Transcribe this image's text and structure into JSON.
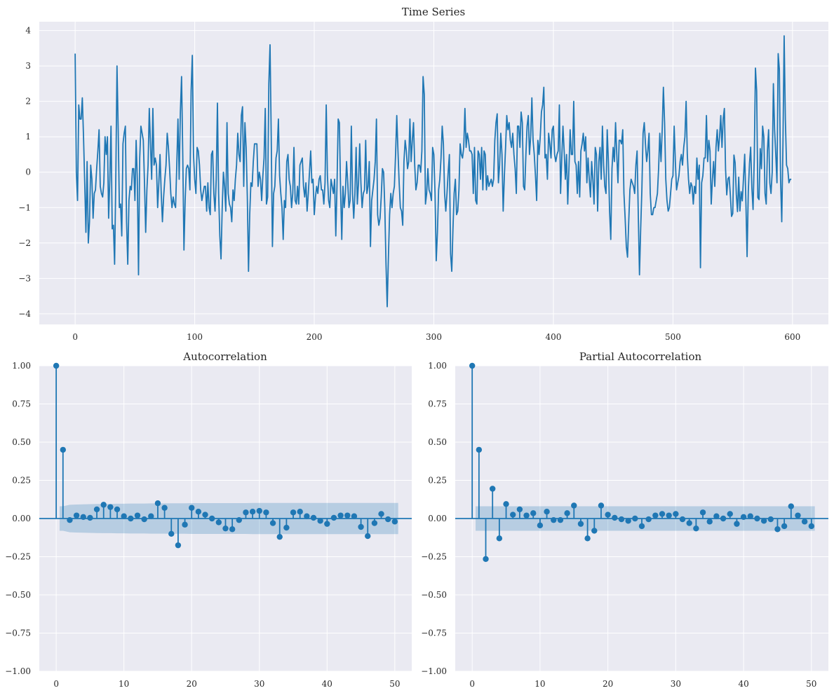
{
  "chart_data": [
    {
      "type": "line",
      "title": "Time Series",
      "xlabel": "",
      "ylabel": "",
      "xlim": [
        -30,
        630
      ],
      "ylim": [
        -4.3,
        4.25
      ],
      "xticks": [
        0,
        100,
        200,
        300,
        400,
        500,
        600
      ],
      "yticks": [
        4,
        3,
        2,
        1,
        0,
        -1,
        -2,
        -3,
        -4
      ],
      "grid": true,
      "color": "#1f77b4",
      "x_start": 0,
      "x_step": 1,
      "description_of_values": "approximate reconstruction of 600-point noisy series read from the plot",
      "values": [
        3.35,
        0.0,
        -0.8,
        1.9,
        1.5,
        1.5,
        2.1,
        1.0,
        -0.3,
        -1.7,
        0.3,
        -2.0,
        -1.4,
        0.2,
        -0.2,
        -1.3,
        -0.6,
        -0.5,
        0.1,
        0.6,
        1.2,
        -0.4,
        -0.6,
        -0.7,
        -0.3,
        1.0,
        0.5,
        1.0,
        -1.3,
        -0.2,
        1.3,
        -1.6,
        -1.5,
        -2.6,
        -0.2,
        3.0,
        1.2,
        -1.0,
        -0.9,
        -1.8,
        0.8,
        1.1,
        1.3,
        -1.4,
        -2.6,
        -0.8,
        -0.4,
        -0.5,
        0.1,
        0.1,
        -0.8,
        0.9,
        -0.2,
        -2.9,
        0.4,
        1.3,
        1.1,
        0.9,
        -0.3,
        -1.7,
        -0.5,
        0.2,
        1.8,
        0.8,
        -0.2,
        1.8,
        0.2,
        0.4,
        0.2,
        -1.0,
        -0.3,
        0.5,
        -0.6,
        -1.4,
        -0.7,
        -0.2,
        0.2,
        1.1,
        0.7,
        0.1,
        -0.6,
        -1.0,
        -0.7,
        -0.9,
        -1.0,
        0.2,
        1.5,
        -0.2,
        1.7,
        2.7,
        0.5,
        -2.2,
        -0.8,
        0.1,
        0.2,
        0.1,
        -0.5,
        2.3,
        3.3,
        0.5,
        -0.2,
        -0.6,
        0.7,
        0.6,
        0.2,
        -0.5,
        -0.8,
        -0.6,
        -0.4,
        -0.4,
        -1.1,
        -0.3,
        -1.0,
        -1.2,
        0.5,
        0.6,
        -0.6,
        -1.1,
        -0.2,
        1.95,
        -0.6,
        -1.8,
        -2.45,
        -1.0,
        0.0,
        -0.4,
        -1.1,
        1.4,
        -0.6,
        -0.9,
        -1.0,
        -1.4,
        -0.5,
        -0.8,
        -0.2,
        0.2,
        1.1,
        0.5,
        0.3,
        1.6,
        1.85,
        -0.4,
        1.4,
        0.7,
        -0.7,
        -2.8,
        -1.2,
        -0.3,
        -0.4,
        0.3,
        0.8,
        0.8,
        0.8,
        -0.4,
        0.0,
        -0.2,
        -0.8,
        -0.1,
        0.4,
        1.8,
        -0.9,
        -0.7,
        2.5,
        3.6,
        1.0,
        -2.1,
        -0.6,
        -0.4,
        0.4,
        0.6,
        1.5,
        -0.1,
        -0.6,
        -1.0,
        -1.9,
        -0.8,
        -1.0,
        0.3,
        0.5,
        -0.2,
        -0.4,
        -1.0,
        -0.6,
        0.7,
        -0.8,
        -0.9,
        -0.4,
        -0.9,
        0.2,
        0.3,
        0.4,
        -0.4,
        -0.7,
        -0.3,
        -1.1,
        -0.6,
        0.0,
        0.6,
        -0.3,
        -0.2,
        -1.2,
        -0.7,
        -0.4,
        -0.6,
        -0.2,
        -0.1,
        -0.5,
        -0.5,
        -0.9,
        -0.3,
        1.9,
        -0.1,
        -0.8,
        -1.0,
        -0.2,
        -0.4,
        -0.6,
        -0.2,
        -1.8,
        -0.4,
        1.5,
        1.4,
        -0.5,
        -1.9,
        -0.4,
        -1.0,
        -0.6,
        0.3,
        -0.3,
        -1.0,
        -0.8,
        1.3,
        -0.6,
        -1.3,
        -0.6,
        0.7,
        -0.9,
        -0.3,
        0.8,
        -0.3,
        -1.0,
        -0.6,
        -0.5,
        0.9,
        -0.6,
        -0.4,
        0.3,
        -2.1,
        -0.8,
        -0.5,
        -0.2,
        0.3,
        1.5,
        -1.2,
        -1.5,
        -1.3,
        -0.7,
        0.1,
        0.0,
        -1.0,
        -2.6,
        -3.8,
        -2.4,
        -1.2,
        -0.6,
        -1.0,
        -0.6,
        -0.4,
        0.5,
        1.6,
        0.6,
        -0.3,
        -1.0,
        -1.1,
        -1.5,
        0.3,
        0.9,
        0.6,
        0.1,
        0.3,
        1.5,
        0.3,
        0.9,
        1.4,
        0.2,
        -0.5,
        -0.3,
        0.2,
        0.2,
        0.0,
        0.6,
        2.7,
        2.2,
        -0.9,
        -0.6,
        0.1,
        -0.5,
        -0.6,
        -0.8,
        0.7,
        0.5,
        -0.6,
        -2.5,
        -1.7,
        -0.5,
        -0.2,
        0.4,
        1.3,
        0.8,
        -0.6,
        -1.1,
        -0.6,
        0.0,
        0.5,
        -2.3,
        -2.8,
        -1.6,
        -0.6,
        -0.2,
        -1.2,
        -1.1,
        -0.5,
        0.8,
        0.5,
        0.4,
        0.7,
        1.8,
        0.7,
        1.1,
        0.9,
        0.6,
        0.6,
        0.5,
        -0.6,
        0.7,
        -0.8,
        -0.9,
        0.6,
        0.5,
        -0.2,
        0.7,
        -0.5,
        0.6,
        0.5,
        -0.5,
        -0.1,
        -0.4,
        -0.3,
        -0.2,
        -0.4,
        -0.2,
        0.9,
        1.4,
        1.65,
        -0.3,
        0.2,
        1.1,
        0.5,
        -1.1,
        -0.1,
        0.7,
        1.6,
        1.2,
        1.4,
        0.9,
        0.7,
        1.1,
        0.5,
        0.1,
        -0.6,
        1.3,
        1.3,
        0.7,
        1.7,
        1.4,
        -0.4,
        -0.5,
        0.5,
        1.3,
        1.6,
        0.5,
        1.0,
        2.1,
        0.9,
        0.5,
        -0.1,
        -0.8,
        0.9,
        0.5,
        1.0,
        1.7,
        1.9,
        2.4,
        0.4,
        0.5,
        -0.2,
        1.1,
        0.8,
        0.4,
        1.2,
        1.3,
        0.5,
        0.3,
        0.5,
        0.6,
        1.9,
        -0.6,
        0.4,
        1.3,
        0.6,
        -0.2,
        0.5,
        -0.9,
        0.1,
        1.2,
        0.5,
        0.5,
        2.0,
        0.3,
        0.2,
        -0.6,
        0.3,
        -0.7,
        0.6,
        0.8,
        1.1,
        0.6,
        1.0,
        -0.3,
        0.4,
        -0.2,
        -0.7,
        0.3,
        -0.2,
        -0.9,
        0.7,
        0.5,
        -1.1,
        0.3,
        0.7,
        -0.2,
        1.3,
        0.2,
        -0.4,
        -0.6,
        1.2,
        0.3,
        -1.1,
        -1.9,
        0.1,
        0.7,
        0.3,
        1.4,
        0.5,
        -0.3,
        0.9,
        0.9,
        0.8,
        1.2,
        -0.6,
        -1.3,
        -2.1,
        -2.4,
        -1.4,
        -0.5,
        -0.2,
        -0.3,
        -0.4,
        -0.6,
        0.2,
        0.6,
        -1.2,
        -2.9,
        -1.6,
        -0.5,
        1.1,
        1.4,
        0.8,
        0.3,
        0.6,
        1.1,
        -0.6,
        -1.2,
        -1.2,
        -1.0,
        -1.0,
        -0.8,
        -0.6,
        0.1,
        1.1,
        0.3,
        1.2,
        2.4,
        1.4,
        -0.2,
        -0.8,
        -1.1,
        -1.0,
        -0.6,
        -0.2,
        -0.1,
        1.3,
        0.3,
        -0.5,
        -0.3,
        -0.1,
        0.3,
        0.5,
        0.2,
        0.7,
        1.0,
        2.0,
        0.5,
        -0.2,
        -0.6,
        -0.3,
        -0.4,
        -0.9,
        -0.4,
        -0.6,
        0.4,
        -0.2,
        0.2,
        -2.7,
        -0.3,
        -0.1,
        0.4,
        0.4,
        1.6,
        0.3,
        0.9,
        0.6,
        -0.9,
        -0.2,
        0.3,
        -0.4,
        0.7,
        1.2,
        0.6,
        1.0,
        1.6,
        0.7,
        1.5,
        1.8
      ],
      "note": "series rendered below with the visible extremes preserved"
    },
    {
      "type": "stem",
      "title": "Autocorrelation",
      "xlim": [
        -2.5,
        52.5
      ],
      "ylim": [
        -1.0,
        1.0
      ],
      "xticks": [
        0,
        10,
        20,
        30,
        40,
        50
      ],
      "yticks": [
        1.0,
        0.75,
        0.5,
        0.25,
        0.0,
        -0.25,
        -0.5,
        -0.75,
        -1.0
      ],
      "lags": [
        0,
        1,
        2,
        3,
        4,
        5,
        6,
        7,
        8,
        9,
        10,
        11,
        12,
        13,
        14,
        15,
        16,
        17,
        18,
        19,
        20,
        21,
        22,
        23,
        24,
        25,
        26,
        27,
        28,
        29,
        30,
        31,
        32,
        33,
        34,
        35,
        36,
        37,
        38,
        39,
        40,
        41,
        42,
        43,
        44,
        45,
        46,
        47,
        48,
        49,
        50
      ],
      "values": [
        1.0,
        0.45,
        -0.01,
        0.02,
        0.01,
        0.005,
        0.06,
        0.09,
        0.075,
        0.06,
        0.015,
        0.0,
        0.02,
        -0.005,
        0.015,
        0.1,
        0.07,
        -0.1,
        -0.175,
        -0.04,
        0.07,
        0.045,
        0.025,
        0.0,
        -0.025,
        -0.065,
        -0.07,
        -0.01,
        0.04,
        0.045,
        0.05,
        0.04,
        -0.03,
        -0.12,
        -0.06,
        0.04,
        0.045,
        0.015,
        0.005,
        -0.015,
        -0.035,
        0.005,
        0.02,
        0.02,
        0.015,
        -0.055,
        -0.115,
        -0.03,
        0.03,
        -0.005,
        -0.02
      ],
      "confint_upper": [
        0.08,
        0.09,
        0.092,
        0.093,
        0.094,
        0.095,
        0.096,
        0.096,
        0.097,
        0.097,
        0.098,
        0.098,
        0.098,
        0.099,
        0.099,
        0.099,
        0.1,
        0.1,
        0.1,
        0.101,
        0.101,
        0.101,
        0.101,
        0.101,
        0.101,
        0.101,
        0.101,
        0.101,
        0.102,
        0.102,
        0.102,
        0.102,
        0.102,
        0.102,
        0.102,
        0.102,
        0.102,
        0.102,
        0.102,
        0.102,
        0.102,
        0.102,
        0.102,
        0.102,
        0.102,
        0.102,
        0.102,
        0.102,
        0.102,
        0.102
      ],
      "band_lags_start": 0.5
    },
    {
      "type": "stem",
      "title": "Partial Autocorrelation",
      "xlim": [
        -2.5,
        52.5
      ],
      "ylim": [
        -1.0,
        1.0
      ],
      "xticks": [
        0,
        10,
        20,
        30,
        40,
        50
      ],
      "yticks": [
        1.0,
        0.75,
        0.5,
        0.25,
        0.0,
        -0.25,
        -0.5,
        -0.75,
        -1.0
      ],
      "lags": [
        0,
        1,
        2,
        3,
        4,
        5,
        6,
        7,
        8,
        9,
        10,
        11,
        12,
        13,
        14,
        15,
        16,
        17,
        18,
        19,
        20,
        21,
        22,
        23,
        24,
        25,
        26,
        27,
        28,
        29,
        30,
        31,
        32,
        33,
        34,
        35,
        36,
        37,
        38,
        39,
        40,
        41,
        42,
        43,
        44,
        45,
        46,
        47,
        48,
        49,
        50
      ],
      "values": [
        1.0,
        0.45,
        -0.265,
        0.195,
        -0.13,
        0.095,
        0.025,
        0.06,
        0.02,
        0.035,
        -0.045,
        0.045,
        -0.01,
        -0.01,
        0.035,
        0.085,
        -0.035,
        -0.13,
        -0.08,
        0.085,
        0.025,
        0.005,
        -0.005,
        -0.015,
        0.0,
        -0.05,
        -0.005,
        0.02,
        0.03,
        0.02,
        0.03,
        -0.005,
        -0.03,
        -0.065,
        0.04,
        -0.02,
        0.015,
        0.0,
        0.03,
        -0.035,
        0.01,
        0.015,
        0.0,
        -0.015,
        -0.005,
        -0.07,
        -0.05,
        0.08,
        0.02,
        -0.02,
        -0.05
      ],
      "confint_half_width": 0.08,
      "band_lags_start": 0.5
    }
  ]
}
